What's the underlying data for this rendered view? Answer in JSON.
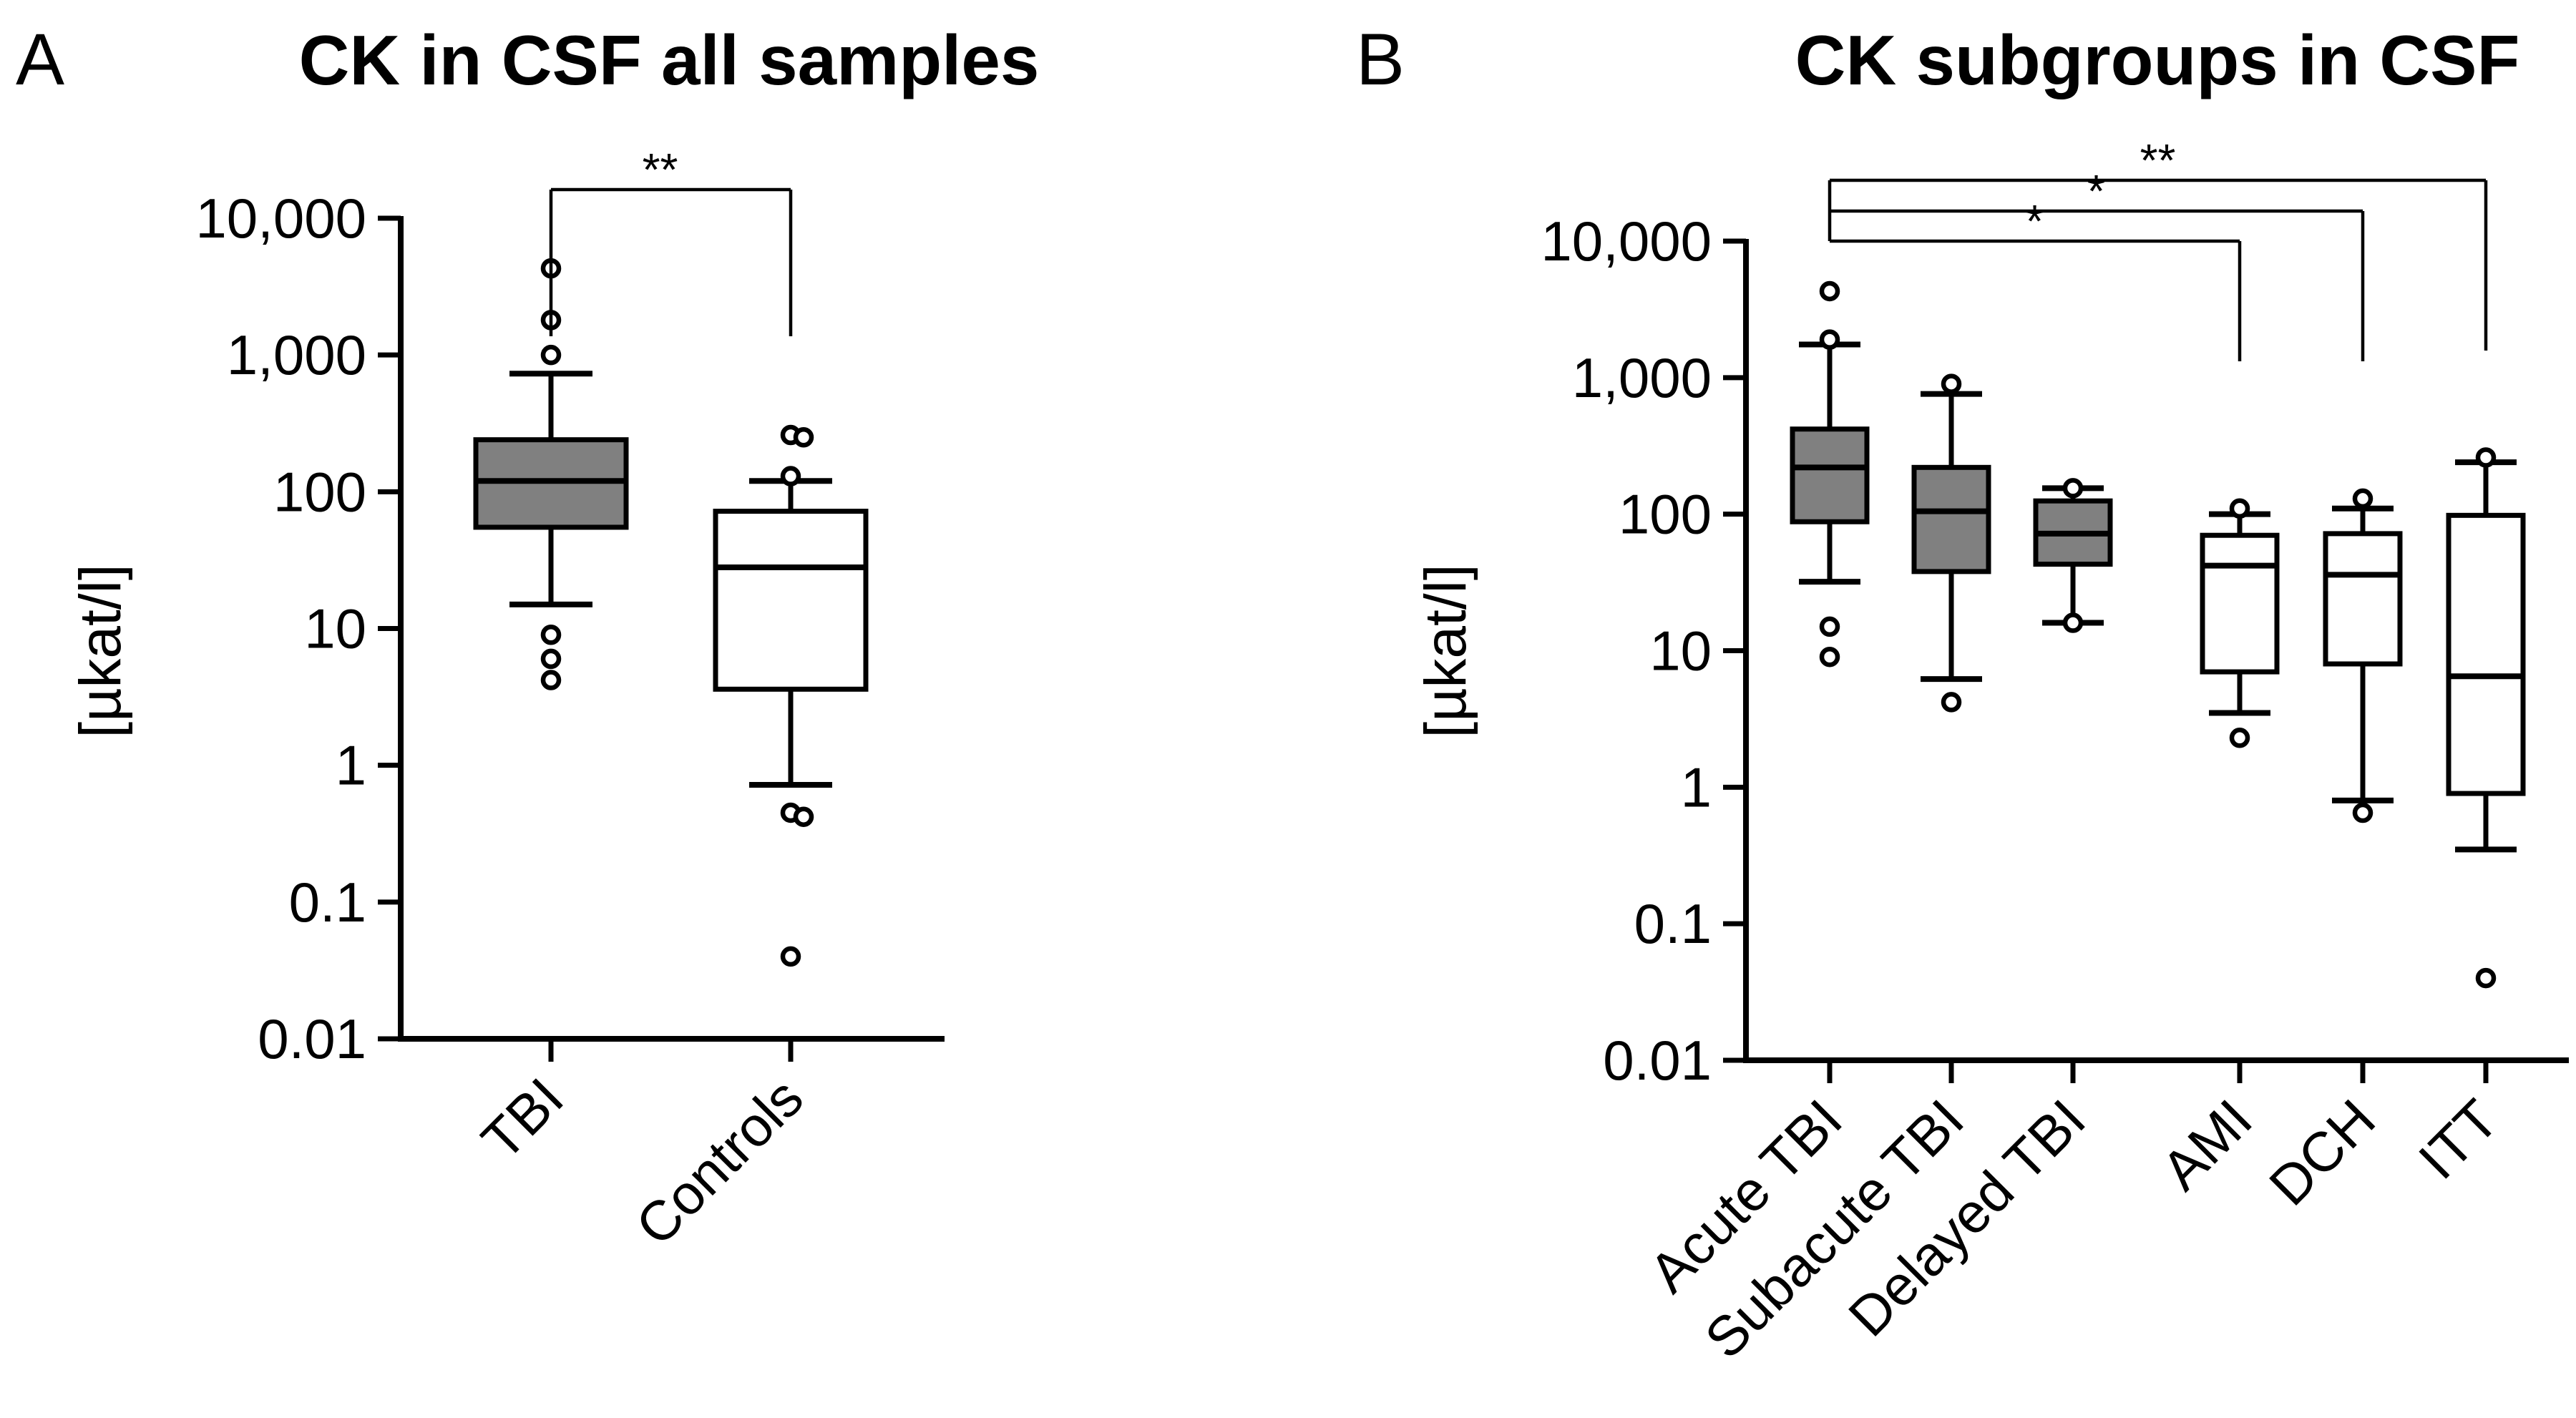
{
  "chart_data": [
    {
      "panel": "A",
      "type": "box",
      "title": "CK in CSF all samples",
      "ylabel": "[µkat/l]",
      "yscale": "log",
      "ylim": [
        0.01,
        10000
      ],
      "yticks": [
        0.01,
        0.1,
        1,
        10,
        100,
        1000,
        10000
      ],
      "ytick_labels": [
        "0.01",
        "0.1",
        "1",
        "10",
        "100",
        "1,000",
        "10,000"
      ],
      "categories": [
        "TBI",
        "Controls"
      ],
      "boxes": [
        {
          "name": "TBI",
          "fill": "#808080",
          "whisker_low": 15,
          "q1": 55,
          "median": 120,
          "q3": 240,
          "whisker_high": 730,
          "outliers": [
            4.2,
            6,
            9,
            1000,
            1800,
            4300
          ]
        },
        {
          "name": "Controls",
          "fill": "#ffffff",
          "whisker_low": 0.72,
          "q1": 3.6,
          "median": 28,
          "q3": 72,
          "whisker_high": 120,
          "outliers": [
            0.04,
            0.42,
            0.45,
            130,
            250,
            260
          ]
        }
      ],
      "significance": [
        {
          "from": "TBI",
          "to": "Controls",
          "label": "**"
        }
      ]
    },
    {
      "panel": "B",
      "type": "box",
      "title": "CK subgroups in CSF",
      "ylabel": "[µkat/l]",
      "yscale": "log",
      "ylim": [
        0.01,
        10000
      ],
      "yticks": [
        0.01,
        0.1,
        1,
        10,
        100,
        1000,
        10000
      ],
      "ytick_labels": [
        "0.01",
        "0.1",
        "1",
        "10",
        "100",
        "1,000",
        "10,000"
      ],
      "categories": [
        "Acute TBI",
        "Subacute TBI",
        "Delayed TBI",
        "AMI",
        "DCH",
        "ITT"
      ],
      "boxes": [
        {
          "name": "Acute TBI",
          "fill": "#808080",
          "whisker_low": 32,
          "q1": 88,
          "median": 220,
          "q3": 420,
          "whisker_high": 1750,
          "outliers": [
            9,
            15,
            1900,
            4300
          ]
        },
        {
          "name": "Subacute TBI",
          "fill": "#808080",
          "whisker_low": 6.2,
          "q1": 38,
          "median": 105,
          "q3": 220,
          "whisker_high": 760,
          "outliers": [
            4.2,
            900
          ]
        },
        {
          "name": "Delayed TBI",
          "fill": "#808080",
          "whisker_low": 16,
          "q1": 43,
          "median": 72,
          "q3": 125,
          "whisker_high": 155,
          "outliers": [
            16,
            155
          ]
        },
        {
          "name": "AMI",
          "fill": "#ffffff",
          "whisker_low": 3.5,
          "q1": 7,
          "median": 42,
          "q3": 70,
          "whisker_high": 100,
          "outliers": [
            2.3,
            110
          ]
        },
        {
          "name": "DCH",
          "fill": "#ffffff",
          "whisker_low": 0.8,
          "q1": 8,
          "median": 36,
          "q3": 72,
          "whisker_high": 110,
          "outliers": [
            0.65,
            130
          ]
        },
        {
          "name": "ITT",
          "fill": "#ffffff",
          "whisker_low": 0.35,
          "q1": 0.9,
          "median": 6.5,
          "q3": 98,
          "whisker_high": 240,
          "outliers": [
            0.04,
            260
          ]
        }
      ],
      "significance": [
        {
          "from": "Acute TBI",
          "to": "AMI",
          "label": "*"
        },
        {
          "from": "Acute TBI",
          "to": "DCH",
          "label": "*"
        },
        {
          "from": "Acute TBI",
          "to": "ITT",
          "label": "**"
        }
      ]
    }
  ]
}
